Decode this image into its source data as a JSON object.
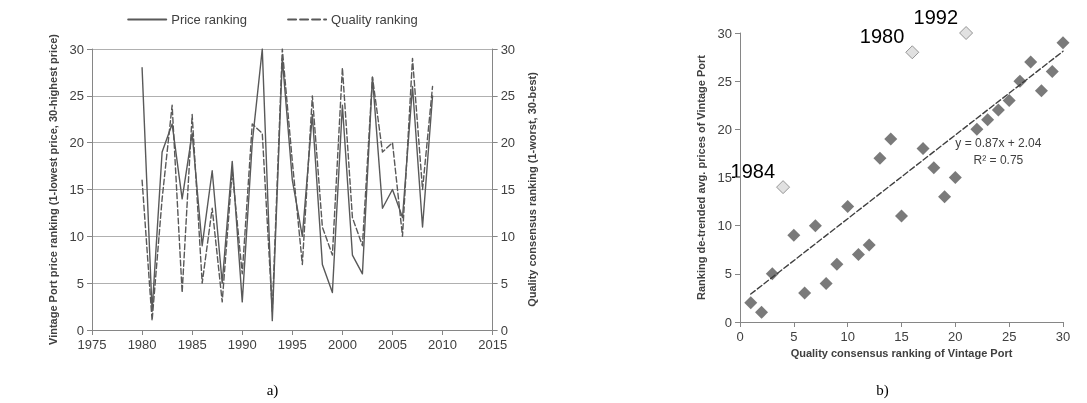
{
  "chart_data": [
    {
      "type": "line",
      "xlim": [
        1975,
        2015
      ],
      "xticks": [
        1975,
        1980,
        1985,
        1990,
        1995,
        2000,
        2005,
        2010,
        2015
      ],
      "ylim": [
        0,
        30
      ],
      "yticks": [
        0,
        5,
        10,
        15,
        20,
        25,
        30
      ],
      "y2lim": [
        0,
        30
      ],
      "y2ticks": [
        0,
        5,
        10,
        15,
        20,
        25,
        30
      ],
      "ylabel": "Vintage Port price ranking (1-lowest price, 30-highest price)",
      "y2label": "Quality consensus ranking (1-worst, 30-best)",
      "grid": "y",
      "legend": "top",
      "marker": "none",
      "x": [
        1980,
        1981,
        1982,
        1983,
        1984,
        1985,
        1986,
        1987,
        1988,
        1989,
        1990,
        1991,
        1992,
        1993,
        1994,
        1995,
        1996,
        1997,
        1998,
        1999,
        2000,
        2001,
        2002,
        2003,
        2004,
        2005,
        2006,
        2007,
        2008,
        2009
      ],
      "series": [
        {
          "name": "Price ranking",
          "color": "#595959",
          "line_style": "solid",
          "values": [
            28,
            2,
            19,
            22,
            14,
            21,
            9,
            17,
            5,
            18,
            3,
            20,
            30,
            1,
            29,
            16,
            10,
            23,
            7,
            4,
            24,
            8,
            6,
            27,
            13,
            15,
            12,
            26,
            11,
            25
          ]
        },
        {
          "name": "Quality ranking",
          "color": "#595959",
          "line_style": "dashed",
          "axis": "y2",
          "values": [
            16,
            1,
            14,
            24,
            4,
            23,
            5,
            13,
            3,
            17,
            6,
            22,
            21,
            2,
            30,
            18,
            7,
            25,
            11,
            8,
            28,
            12,
            9,
            27,
            19,
            20,
            10,
            29,
            15,
            26
          ]
        }
      ],
      "annotations": [
        "a)"
      ]
    },
    {
      "type": "scatter",
      "xlim": [
        0,
        30
      ],
      "xticks": [
        0,
        5,
        10,
        15,
        20,
        25,
        30
      ],
      "ylim": [
        0,
        30
      ],
      "yticks": [
        0,
        5,
        10,
        15,
        20,
        25,
        30
      ],
      "xlabel": "Quality consensus ranking of Vintage Port",
      "ylabel": "Ranking de-trended avg. prices of Vintage Port",
      "grid": false,
      "marker": "diamond",
      "series": [
        {
          "color": "#595959",
          "x": [
            1,
            2,
            3,
            5,
            6,
            7,
            8,
            9,
            10,
            11,
            12,
            13,
            14,
            15,
            17,
            18,
            19,
            20,
            22,
            23,
            24,
            25,
            26,
            27,
            28,
            29,
            30
          ],
          "values": [
            2,
            1,
            5,
            9,
            3,
            10,
            4,
            6,
            12,
            7,
            8,
            17,
            19,
            11,
            18,
            16,
            13,
            15,
            20,
            21,
            22,
            23,
            25,
            27,
            24,
            26,
            29
          ]
        },
        {
          "color": "#d9d9d9",
          "x": [
            4,
            16,
            21
          ],
          "values": [
            14,
            28,
            30
          ]
        },
        {
          "type": "line",
          "color": "#404040",
          "line_style": "dashed",
          "marker": "none",
          "x": [
            1,
            30
          ],
          "values": [
            2.9,
            28.1
          ]
        }
      ],
      "annotations": [
        {
          "text": "1984",
          "x": 4,
          "y": 14
        },
        {
          "text": "1980",
          "x": 16,
          "y": 28
        },
        {
          "text": "1992",
          "x": 21,
          "y": 30
        },
        "y = 0.87x + 2.04",
        "R² = 0.75",
        "b)"
      ]
    }
  ]
}
